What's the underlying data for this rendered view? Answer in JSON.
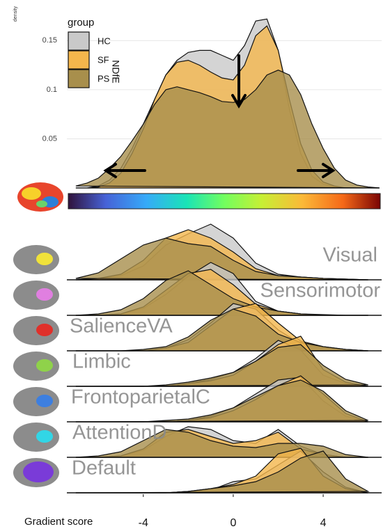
{
  "chart_data": [
    {
      "type": "density",
      "y_label": "density",
      "legend_title": "group",
      "annotation": "NDfE",
      "x": [
        -7,
        -6.5,
        -6,
        -5.5,
        -5,
        -4.5,
        -4,
        -3.5,
        -3,
        -2.5,
        -2,
        -1.5,
        -1,
        -0.5,
        0,
        0.5,
        1,
        1.5,
        2,
        2.5,
        3,
        3.5,
        4,
        4.5,
        5,
        5.5,
        6,
        6.5
      ],
      "series": [
        {
          "name": "HC",
          "color": "#c9c9c9",
          "values": [
            0,
            0,
            0.002,
            0.008,
            0.02,
            0.04,
            0.065,
            0.09,
            0.115,
            0.13,
            0.138,
            0.14,
            0.14,
            0.135,
            0.13,
            0.145,
            0.17,
            0.172,
            0.14,
            0.08,
            0.035,
            0.012,
            0.004,
            0.001,
            0,
            0,
            0,
            0
          ]
        },
        {
          "name": "SF",
          "color": "#f4b64c",
          "values": [
            0,
            0,
            0.001,
            0.005,
            0.015,
            0.035,
            0.06,
            0.09,
            0.115,
            0.128,
            0.13,
            0.125,
            0.118,
            0.112,
            0.11,
            0.125,
            0.155,
            0.165,
            0.14,
            0.09,
            0.045,
            0.018,
            0.006,
            0.002,
            0,
            0,
            0,
            0
          ]
        },
        {
          "name": "PS",
          "color": "#a88f4c",
          "values": [
            0.002,
            0.005,
            0.01,
            0.02,
            0.032,
            0.048,
            0.065,
            0.085,
            0.1,
            0.103,
            0.1,
            0.097,
            0.093,
            0.088,
            0.087,
            0.09,
            0.1,
            0.115,
            0.12,
            0.115,
            0.095,
            0.065,
            0.04,
            0.02,
            0.008,
            0.003,
            0.001,
            0
          ]
        }
      ],
      "xlim": [
        -7.4,
        6.6
      ],
      "ylim": [
        0,
        0.18
      ],
      "yticks": [
        0.05,
        0.1,
        0.15
      ],
      "grid": true
    },
    {
      "type": "ridgeline",
      "x_label": "Gradient score",
      "x": [
        -7,
        -6,
        -5,
        -4,
        -3,
        -2,
        -1,
        0,
        1,
        2,
        3,
        4,
        5,
        6
      ],
      "xlim": [
        -7.4,
        6.6
      ],
      "xticks": [
        -4,
        0,
        4
      ],
      "colors": [
        "#c9c9c9",
        "#f4b64c",
        "#a88f4c"
      ],
      "rows": [
        {
          "label": "Visual",
          "series": [
            [
              0,
              0.01,
              0.03,
              0.1,
              0.25,
              0.33,
              0.4,
              0.3,
              0.12,
              0.04,
              0.02,
              0.01,
              0.005,
              0
            ],
            [
              0,
              0.01,
              0.04,
              0.14,
              0.3,
              0.36,
              0.3,
              0.2,
              0.08,
              0.03,
              0.02,
              0.01,
              0.005,
              0
            ],
            [
              0.01,
              0.05,
              0.15,
              0.25,
              0.3,
              0.26,
              0.24,
              0.14,
              0.06,
              0.03,
              0.02,
              0.01,
              0.005,
              0
            ]
          ]
        },
        {
          "label": "Sensorimotor",
          "series": [
            [
              0,
              0,
              0.01,
              0.05,
              0.15,
              0.28,
              0.38,
              0.3,
              0.1,
              0.03,
              0.01,
              0,
              0,
              0
            ],
            [
              0,
              0,
              0.01,
              0.06,
              0.18,
              0.3,
              0.33,
              0.22,
              0.08,
              0.03,
              0.01,
              0,
              0,
              0
            ],
            [
              0,
              0.01,
              0.04,
              0.12,
              0.25,
              0.32,
              0.22,
              0.12,
              0.06,
              0.03,
              0.01,
              0.005,
              0,
              0
            ]
          ]
        },
        {
          "label": "SalienceVA",
          "series": [
            [
              0,
              0,
              0,
              0,
              0.02,
              0.08,
              0.2,
              0.34,
              0.3,
              0.15,
              0.05,
              0.02,
              0.01,
              0
            ],
            [
              0,
              0,
              0,
              0,
              0.02,
              0.06,
              0.18,
              0.3,
              0.34,
              0.2,
              0.07,
              0.03,
              0.01,
              0
            ],
            [
              0,
              0,
              0,
              0.01,
              0.03,
              0.1,
              0.22,
              0.3,
              0.25,
              0.12,
              0.06,
              0.03,
              0.01,
              0
            ]
          ]
        },
        {
          "label": "Limbic",
          "series": [
            [
              0,
              0,
              0,
              0,
              0,
              0.02,
              0.05,
              0.1,
              0.2,
              0.33,
              0.26,
              0.08,
              0.02,
              0
            ],
            [
              0,
              0,
              0,
              0,
              0,
              0.02,
              0.04,
              0.08,
              0.18,
              0.3,
              0.36,
              0.12,
              0.03,
              0
            ],
            [
              0,
              0,
              0,
              0,
              0.01,
              0.03,
              0.06,
              0.1,
              0.18,
              0.28,
              0.3,
              0.15,
              0.05,
              0.01
            ]
          ]
        },
        {
          "label": "FrontoparietalC",
          "series": [
            [
              0,
              0,
              0,
              0,
              0,
              0.01,
              0.04,
              0.1,
              0.2,
              0.3,
              0.32,
              0.15,
              0.04,
              0
            ],
            [
              0,
              0,
              0,
              0,
              0,
              0.01,
              0.03,
              0.08,
              0.16,
              0.26,
              0.33,
              0.2,
              0.06,
              0
            ],
            [
              0,
              0,
              0,
              0,
              0.01,
              0.02,
              0.05,
              0.1,
              0.18,
              0.26,
              0.3,
              0.22,
              0.08,
              0.01
            ]
          ]
        },
        {
          "label": "AttentionD",
          "series": [
            [
              0,
              0,
              0.01,
              0.05,
              0.15,
              0.22,
              0.2,
              0.12,
              0.1,
              0.2,
              0.08,
              0.02,
              0,
              0
            ],
            [
              0,
              0,
              0.01,
              0.06,
              0.18,
              0.2,
              0.15,
              0.1,
              0.12,
              0.18,
              0.06,
              0.02,
              0,
              0
            ],
            [
              0,
              0.01,
              0.04,
              0.12,
              0.2,
              0.18,
              0.12,
              0.08,
              0.07,
              0.1,
              0.1,
              0.08,
              0.02,
              0
            ]
          ]
        },
        {
          "label": "Default",
          "series": [
            [
              0,
              0,
              0,
              0,
              0,
              0.01,
              0.02,
              0.08,
              0.1,
              0.2,
              0.3,
              0.15,
              0.04,
              0
            ],
            [
              0,
              0,
              0,
              0,
              0,
              0.01,
              0.03,
              0.06,
              0.12,
              0.28,
              0.32,
              0.12,
              0.03,
              0
            ],
            [
              0,
              0,
              0,
              0,
              0,
              0.01,
              0.03,
              0.05,
              0.08,
              0.15,
              0.25,
              0.3,
              0.1,
              0.01
            ]
          ]
        }
      ]
    }
  ]
}
